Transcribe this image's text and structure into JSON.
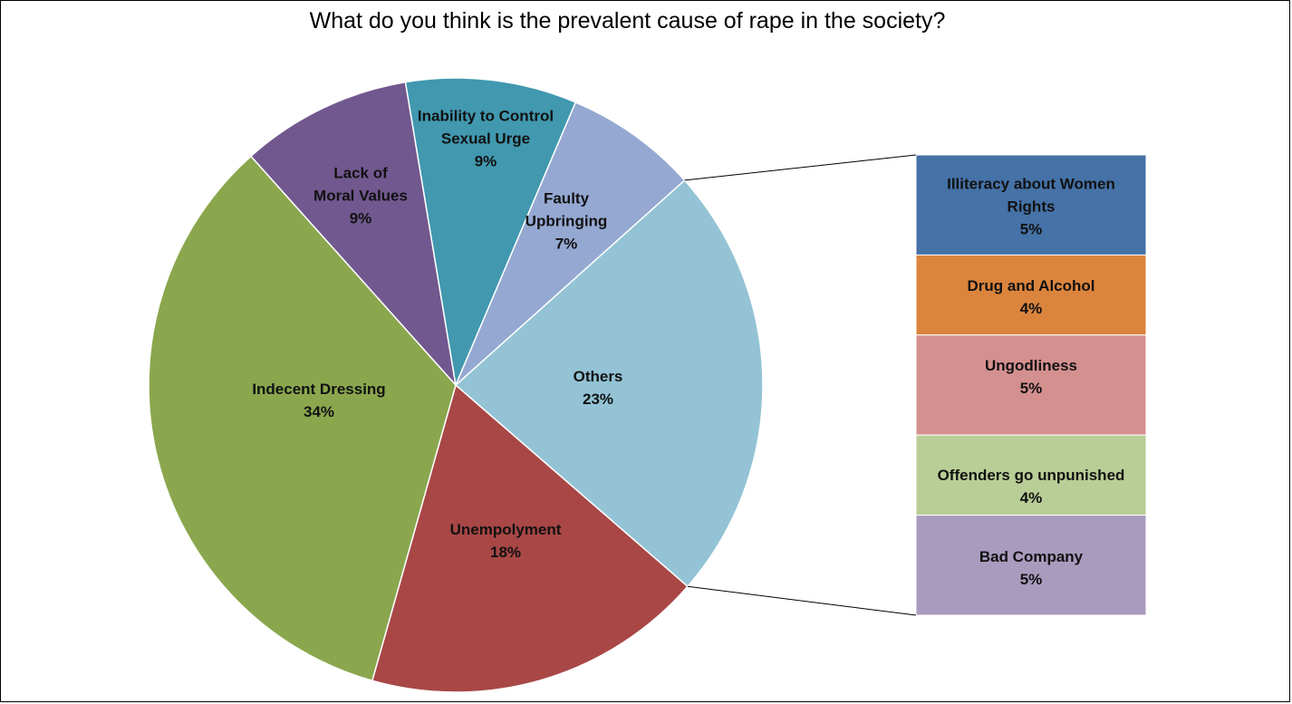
{
  "chart_data": {
    "type": "bar-of-pie",
    "title": "What do you think is the prevalent cause of rape in the society?",
    "pie": [
      {
        "name": "Others",
        "lines": [
          "Others"
        ],
        "pct_label": "23%",
        "value": 23,
        "color": "#93C3D5"
      },
      {
        "name": "Unempolyment",
        "lines": [
          "Unempolyment"
        ],
        "pct_label": "18%",
        "value": 18,
        "color": "#A84746"
      },
      {
        "name": "Indecent Dressing",
        "lines": [
          "Indecent Dressing"
        ],
        "pct_label": "34%",
        "value": 34,
        "color": "#8AA74E"
      },
      {
        "name": "Lack of Moral Values",
        "lines": [
          "Lack of",
          "Moral Values"
        ],
        "pct_label": "9%",
        "value": 9,
        "color": "#71588F"
      },
      {
        "name": "Inability to Control Sexual Urge",
        "lines": [
          "Inability to Control",
          "Sexual Urge"
        ],
        "pct_label": "9%",
        "value": 9,
        "color": "#4198AF"
      },
      {
        "name": "Faulty Upbringing",
        "lines": [
          "Faulty",
          "Upbringing"
        ],
        "pct_label": "7%",
        "value": 7,
        "color": "#95A8D2"
      }
    ],
    "bar": [
      {
        "name": "Illiteracy about Women Rights",
        "lines": [
          "Illiteracy about Women",
          "Rights"
        ],
        "pct_label": "5%",
        "value": 5,
        "color": "#4572A7"
      },
      {
        "name": "Drug and Alcohol",
        "lines": [
          "Drug and Alcohol"
        ],
        "pct_label": "4%",
        "value": 4,
        "color": "#DB843D"
      },
      {
        "name": "Ungodliness",
        "lines": [
          "Ungodliness"
        ],
        "pct_label": "5%",
        "value": 5,
        "color": "#D4908F"
      },
      {
        "name": "Offenders go unpunished",
        "lines": [
          "Offenders go unpunished"
        ],
        "pct_label": "4%",
        "value": 4,
        "color": "#B9CD96"
      },
      {
        "name": "Bad Company",
        "lines": [
          "Bad Company"
        ],
        "pct_label": "5%",
        "value": 5,
        "color": "#A99BBD"
      }
    ]
  }
}
